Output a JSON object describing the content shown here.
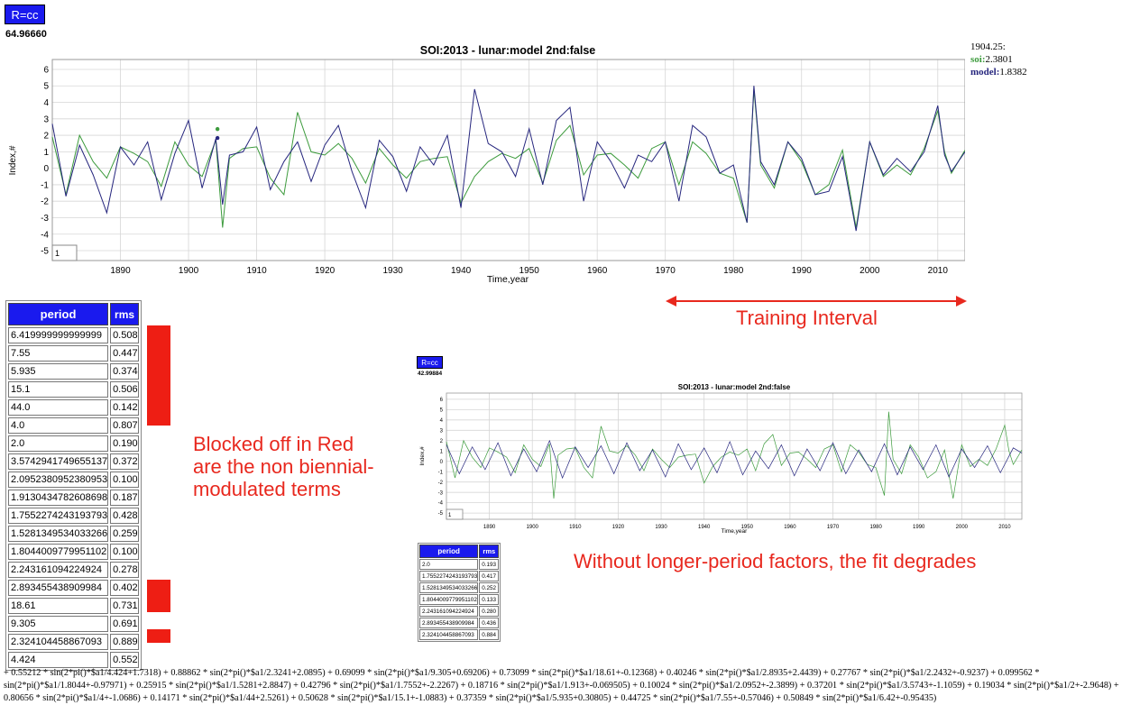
{
  "main": {
    "button_label": "R=cc",
    "rvalue": "64.96660",
    "legend": {
      "time": "1904.25:",
      "soi_label": "soi:",
      "soi_value": "2.3801",
      "model_label": "model:",
      "model_value": "1.8382"
    },
    "training_label": "Training Interval",
    "blocked_note": "Blocked off in Red are the non biennial-modulated terms",
    "blocked_note_lines": [
      "Blocked off in Red",
      "are the non biennial-",
      "modulated terms"
    ],
    "degrade_note": "Without longer-period factors, the fit degrades",
    "table": {
      "headers": [
        "period",
        "rms"
      ],
      "rows": [
        [
          "6.419999999999999",
          "0.508"
        ],
        [
          "7.55",
          "0.447"
        ],
        [
          "5.935",
          "0.374"
        ],
        [
          "15.1",
          "0.506"
        ],
        [
          "44.0",
          "0.142"
        ],
        [
          "4.0",
          "0.807"
        ],
        [
          "2.0",
          "0.190"
        ],
        [
          "3.5742941749655137",
          "0.372"
        ],
        [
          "2.0952380952380953",
          "0.100"
        ],
        [
          "1.9130434782608698",
          "0.187"
        ],
        [
          "1.7552274243193793",
          "0.428"
        ],
        [
          "1.5281349534033266",
          "0.259"
        ],
        [
          "1.8044009779951102",
          "0.100"
        ],
        [
          "2.243161094224924",
          "0.278"
        ],
        [
          "2.893455438909984",
          "0.402"
        ],
        [
          "18.61",
          "0.731"
        ],
        [
          "9.305",
          "0.691"
        ],
        [
          "2.324104458867093",
          "0.889"
        ],
        [
          "4.424",
          "0.552"
        ]
      ]
    },
    "formula": "+ 0.55212 * sin(2*pi()*$a1/4.424+1.7318) + 0.88862 * sin(2*pi()*$a1/2.3241+2.0895) + 0.69099 * sin(2*pi()*$a1/9.305+0.69206) + 0.73099 * sin(2*pi()*$a1/18.61+-0.12368) + 0.40246 * sin(2*pi()*$a1/2.8935+2.4439) + 0.27767 * sin(2*pi()*$a1/2.2432+-0.9237) + 0.099562 * sin(2*pi()*$a1/1.8044+-0.97971) + 0.25915 * sin(2*pi()*$a1/1.5281+2.8847) + 0.42796 * sin(2*pi()*$a1/1.7552+-2.2267) + 0.18716 * sin(2*pi()*$a1/1.913+-0.069505) + 0.10024 * sin(2*pi()*$a1/2.0952+-2.3899) + 0.37201 * sin(2*pi()*$a1/3.5743+-1.1059) + 0.19034 * sin(2*pi()*$a1/2+-2.9648) + 0.80656 * sin(2*pi()*$a1/4+-1.0686) + 0.14171 * sin(2*pi()*$a1/44+2.5261) + 0.50628 * sin(2*pi()*$a1/15.1+-1.0883) + 0.37359 * sin(2*pi()*$a1/5.935+0.30805) + 0.44725 * sin(2*pi()*$a1/7.55+-0.57046) + 0.50849 * sin(2*pi()*$a1/6.42+-0.95435)"
  },
  "inset": {
    "button_label": "R=cc",
    "rvalue": "42.99884",
    "table": {
      "headers": [
        "period",
        "rms"
      ],
      "rows": [
        [
          "2.0",
          "0.193"
        ],
        [
          "1.7552274243193793",
          "0.417"
        ],
        [
          "1.5281349534033266",
          "0.252"
        ],
        [
          "1.8044009779951102",
          "0.133"
        ],
        [
          "2.243161094224924",
          "0.280"
        ],
        [
          "2.893455438909984",
          "0.436"
        ],
        [
          "2.324104458867093",
          "0.884"
        ]
      ]
    }
  },
  "colors": {
    "soi": "#3d9b3d",
    "model": "#26267e",
    "accent_red": "#e8281e",
    "button": "#1a1aee"
  },
  "chart_data": [
    {
      "type": "line",
      "title": "SOI:2013 - lunar:model 2nd:false",
      "xlabel": "Time,year",
      "ylabel": "Index,#",
      "xlim": [
        1880,
        2014
      ],
      "ylim": [
        -5.6,
        6.6
      ],
      "xticks": [
        1890,
        1900,
        1910,
        1920,
        1930,
        1940,
        1950,
        1960,
        1970,
        1980,
        1990,
        2000,
        2010
      ],
      "yticks": [
        -5,
        -4,
        -3,
        -2,
        -1,
        0,
        1,
        2,
        3,
        4,
        5,
        6
      ],
      "grid": true,
      "corner_box_text": "1",
      "training_interval": [
        1970,
        2014
      ],
      "series": [
        {
          "name": "soi",
          "x": [
            1880,
            1882,
            1884,
            1886,
            1888,
            1890,
            1892,
            1894,
            1896,
            1898,
            1900,
            1902,
            1904,
            1905,
            1906,
            1908,
            1910,
            1912,
            1914,
            1916,
            1918,
            1920,
            1922,
            1924,
            1926,
            1928,
            1930,
            1932,
            1934,
            1936,
            1938,
            1940,
            1942,
            1944,
            1946,
            1948,
            1950,
            1952,
            1954,
            1956,
            1958,
            1960,
            1962,
            1964,
            1966,
            1968,
            1970,
            1972,
            1974,
            1976,
            1978,
            1980,
            1982,
            1983,
            1984,
            1986,
            1988,
            1990,
            1992,
            1994,
            1996,
            1998,
            2000,
            2002,
            2004,
            2006,
            2008,
            2010,
            2011,
            2012,
            2014
          ],
          "y": [
            1.9,
            -1.6,
            2.0,
            0.4,
            -0.6,
            1.3,
            0.9,
            0.4,
            -1.1,
            1.6,
            0.2,
            -0.5,
            1.7,
            -3.6,
            0.6,
            1.2,
            1.3,
            -0.6,
            -1.6,
            3.4,
            1.0,
            0.8,
            1.5,
            0.6,
            -0.9,
            1.2,
            0.2,
            -0.6,
            0.4,
            0.6,
            0.7,
            -2.1,
            -0.5,
            0.4,
            0.9,
            0.6,
            1.2,
            -0.9,
            1.7,
            2.6,
            -0.4,
            0.8,
            0.9,
            0.2,
            -0.6,
            1.2,
            1.6,
            -1.0,
            1.6,
            0.9,
            -0.3,
            -0.6,
            -3.3,
            4.8,
            0.2,
            -1.2,
            1.6,
            0.4,
            -1.6,
            -1.0,
            1.1,
            -3.6,
            1.6,
            -0.5,
            0.2,
            -0.4,
            1.2,
            3.5,
            1.0,
            -0.3,
            1.1
          ]
        },
        {
          "name": "model",
          "x": [
            1880,
            1882,
            1884,
            1886,
            1888,
            1890,
            1892,
            1894,
            1896,
            1898,
            1900,
            1902,
            1904,
            1905,
            1906,
            1908,
            1910,
            1912,
            1914,
            1916,
            1918,
            1920,
            1922,
            1924,
            1926,
            1928,
            1930,
            1932,
            1934,
            1936,
            1938,
            1940,
            1942,
            1944,
            1946,
            1948,
            1950,
            1952,
            1954,
            1956,
            1958,
            1960,
            1962,
            1964,
            1966,
            1968,
            1970,
            1972,
            1974,
            1976,
            1978,
            1980,
            1982,
            1983,
            1984,
            1986,
            1988,
            1990,
            1992,
            1994,
            1996,
            1998,
            2000,
            2002,
            2004,
            2006,
            2008,
            2010,
            2011,
            2012,
            2014
          ],
          "y": [
            2.7,
            -1.7,
            1.4,
            -0.4,
            -2.7,
            1.3,
            0.2,
            1.6,
            -1.9,
            0.9,
            2.9,
            -1.2,
            1.8,
            -2.2,
            0.8,
            1.0,
            2.5,
            -1.3,
            0.4,
            1.6,
            -0.8,
            1.4,
            2.6,
            -0.2,
            -2.4,
            1.7,
            0.7,
            -1.4,
            1.3,
            0.2,
            2.0,
            -2.4,
            4.8,
            1.5,
            1.0,
            -0.5,
            2.4,
            -1.0,
            2.9,
            3.7,
            -2.0,
            1.6,
            0.4,
            -1.2,
            0.8,
            0.4,
            1.6,
            -2.0,
            2.6,
            1.9,
            -0.3,
            0.2,
            -3.3,
            5.0,
            0.4,
            -1.0,
            1.6,
            0.6,
            -1.6,
            -1.4,
            0.7,
            -3.8,
            1.6,
            -0.4,
            0.6,
            -0.2,
            1.0,
            3.8,
            0.8,
            -0.2,
            1.0
          ]
        }
      ],
      "highlight": {
        "time": 1904.25,
        "soi": 2.3801,
        "model": 1.8382
      }
    },
    {
      "type": "line",
      "title": "SOI:2013 - lunar:model 2nd:false",
      "xlabel": "Time,year",
      "ylabel": "Index,#",
      "xlim": [
        1880,
        2014
      ],
      "ylim": [
        -5.6,
        6.6
      ],
      "xticks": [
        1890,
        1900,
        1910,
        1920,
        1930,
        1940,
        1950,
        1960,
        1970,
        1980,
        1990,
        2000,
        2010
      ],
      "yticks": [
        -5,
        -4,
        -3,
        -2,
        -1,
        0,
        1,
        2,
        3,
        4,
        5,
        6
      ],
      "grid": true,
      "corner_box_text": "1",
      "series": [
        {
          "name": "soi",
          "x": [
            1880,
            1882,
            1884,
            1886,
            1888,
            1890,
            1892,
            1894,
            1896,
            1898,
            1900,
            1902,
            1904,
            1905,
            1906,
            1908,
            1910,
            1912,
            1914,
            1916,
            1918,
            1920,
            1922,
            1924,
            1926,
            1928,
            1930,
            1932,
            1934,
            1936,
            1938,
            1940,
            1942,
            1944,
            1946,
            1948,
            1950,
            1952,
            1954,
            1956,
            1958,
            1960,
            1962,
            1964,
            1966,
            1968,
            1970,
            1972,
            1974,
            1976,
            1978,
            1980,
            1982,
            1983,
            1984,
            1986,
            1988,
            1990,
            1992,
            1994,
            1996,
            1998,
            2000,
            2002,
            2004,
            2006,
            2008,
            2010,
            2011,
            2012,
            2014
          ],
          "y": [
            1.9,
            -1.6,
            2.0,
            0.4,
            -0.6,
            1.3,
            0.9,
            0.4,
            -1.1,
            1.6,
            0.2,
            -0.5,
            1.7,
            -3.6,
            0.6,
            1.2,
            1.3,
            -0.6,
            -1.6,
            3.4,
            1.0,
            0.8,
            1.5,
            0.6,
            -0.9,
            1.2,
            0.2,
            -0.6,
            0.4,
            0.6,
            0.7,
            -2.1,
            -0.5,
            0.4,
            0.9,
            0.6,
            1.2,
            -0.9,
            1.7,
            2.6,
            -0.4,
            0.8,
            0.9,
            0.2,
            -0.6,
            1.2,
            1.6,
            -1.0,
            1.6,
            0.9,
            -0.3,
            -0.6,
            -3.3,
            4.8,
            0.2,
            -1.2,
            1.6,
            0.4,
            -1.6,
            -1.0,
            1.1,
            -3.6,
            1.6,
            -0.5,
            0.2,
            -0.4,
            1.2,
            3.5,
            1.0,
            -0.3,
            1.1
          ]
        },
        {
          "name": "model",
          "x": [
            1880,
            1883,
            1886,
            1889,
            1892,
            1895,
            1898,
            1901,
            1904,
            1907,
            1910,
            1913,
            1916,
            1919,
            1922,
            1925,
            1928,
            1931,
            1934,
            1937,
            1940,
            1943,
            1946,
            1949,
            1952,
            1955,
            1958,
            1961,
            1964,
            1967,
            1970,
            1973,
            1976,
            1979,
            1982,
            1985,
            1988,
            1991,
            1994,
            1997,
            2000,
            2003,
            2006,
            2009,
            2012,
            2014
          ],
          "y": [
            1.6,
            -1.2,
            1.4,
            -0.8,
            1.8,
            -1.4,
            1.2,
            -1.0,
            2.0,
            -1.6,
            1.4,
            -0.6,
            1.5,
            -1.2,
            1.8,
            -0.9,
            1.1,
            -1.5,
            1.7,
            -0.8,
            1.3,
            -1.1,
            1.9,
            -1.3,
            1.0,
            -0.7,
            1.6,
            -1.4,
            1.2,
            -0.9,
            1.8,
            -1.2,
            1.1,
            -1.0,
            1.7,
            -1.3,
            1.4,
            -0.8,
            1.6,
            -1.5,
            1.2,
            -0.6,
            1.5,
            -1.1,
            1.3,
            0.8
          ]
        }
      ]
    }
  ]
}
